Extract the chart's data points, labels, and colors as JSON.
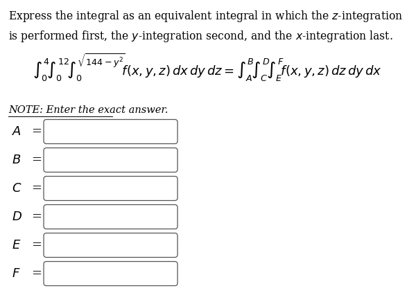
{
  "background_color": "#ffffff",
  "title_line1": "Express the integral as an equivalent integral in which the $z$-integration",
  "title_line2": "is performed first, the $y$-integration second, and the $x$-integration last.",
  "note_text": "NOTE: Enter the exact answer.",
  "labels": [
    "A",
    "B",
    "C",
    "D",
    "E",
    "F"
  ],
  "font_size_title": 11.2,
  "font_size_integral": 13.0,
  "font_size_note": 10.5,
  "font_size_labels": 13.0,
  "fig_width": 5.97,
  "fig_height": 4.23,
  "dpi": 100
}
